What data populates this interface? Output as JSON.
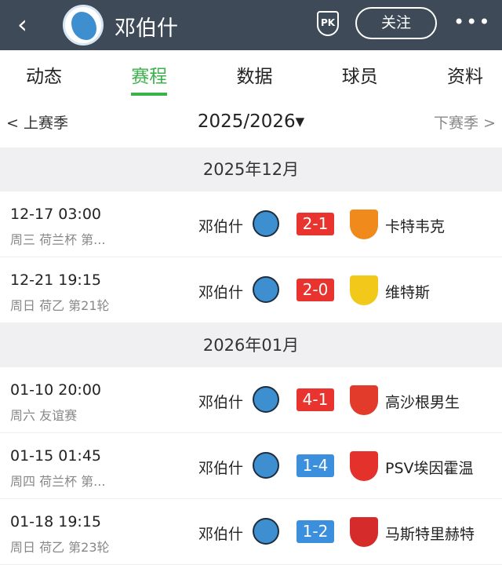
{
  "header": {
    "title": "邓伯什",
    "follow_label": "关注",
    "pk_label": "PK",
    "back_icon": "‹",
    "more_icon": "•••"
  },
  "tabs": [
    {
      "label": "动态"
    },
    {
      "label": "赛程",
      "active": true
    },
    {
      "label": "数据"
    },
    {
      "label": "球员"
    },
    {
      "label": "资料"
    }
  ],
  "season": {
    "prev": "< 上赛季",
    "current": "2025/2026▾",
    "next": "下赛季 >"
  },
  "colors": {
    "win": "#e8332f",
    "loss": "#3b8fdc",
    "accent": "#3db24b"
  },
  "months": [
    {
      "label": "2025年12月",
      "matches": [
        {
          "time": "12-17 03:00",
          "info": "周三 荷兰杯 第...",
          "home": "邓伯什",
          "score": "2-1",
          "result": "win",
          "away": "卡特韦克",
          "away_badge": "#f08a1c"
        },
        {
          "time": "12-21 19:15",
          "info": "周日 荷乙 第21轮",
          "home": "邓伯什",
          "score": "2-0",
          "result": "win",
          "away": "维特斯",
          "away_badge": "#f2c81a"
        }
      ]
    },
    {
      "label": "2026年01月",
      "matches": [
        {
          "time": "01-10 20:00",
          "info": "周六 友谊赛",
          "home": "邓伯什",
          "score": "4-1",
          "result": "win",
          "away": "高沙根男生",
          "away_badge": "#e23a2b"
        },
        {
          "time": "01-15 01:45",
          "info": "周四 荷兰杯 第...",
          "home": "邓伯什",
          "score": "1-4",
          "result": "loss",
          "away": "PSV埃因霍温",
          "away_badge": "#e4312b"
        },
        {
          "time": "01-18 19:15",
          "info": "周日 荷乙 第23轮",
          "home": "邓伯什",
          "score": "1-2",
          "result": "loss",
          "away": "马斯特里赫特",
          "away_badge": "#d52b2b"
        }
      ]
    }
  ]
}
